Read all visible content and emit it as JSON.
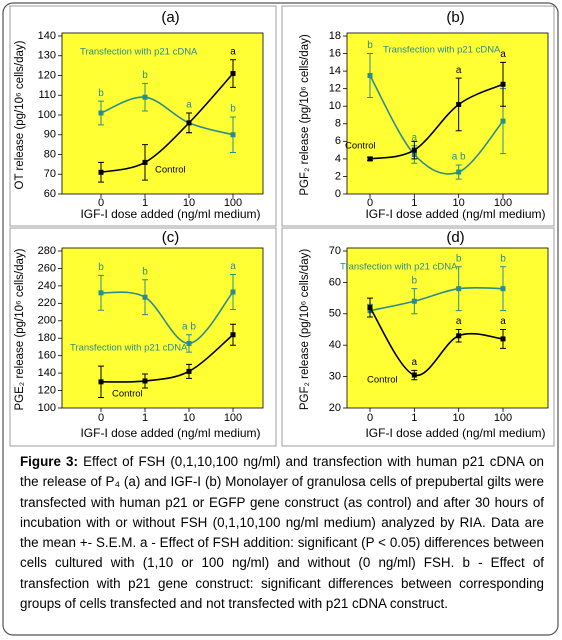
{
  "chart_data": [
    {
      "type": "line",
      "title": "(a)",
      "x_label": "IGF-I dose added (ng/ml medium)",
      "y_label": "OT release (pg/10⁶ cells/day)",
      "categories": [
        "0",
        "1",
        "10",
        "100"
      ],
      "ylim": [
        60,
        140
      ],
      "yticks": [
        60,
        70,
        80,
        90,
        100,
        110,
        120,
        130,
        140
      ],
      "series": [
        {
          "name": "Transfection with p21 cDNA",
          "color": "#2b8c8c",
          "values": [
            101,
            109,
            96,
            90
          ],
          "errors": [
            6,
            7,
            5,
            9
          ],
          "labels": [
            "b",
            "b",
            "a",
            "b"
          ]
        },
        {
          "name": "Control",
          "color": "#000000",
          "values": [
            71,
            76,
            96,
            121
          ],
          "errors": [
            5,
            9,
            5,
            7
          ],
          "labels": [
            null,
            null,
            null,
            "a"
          ]
        }
      ]
    },
    {
      "type": "line",
      "title": "(b)",
      "x_label": "IGF-I dose added (ng/ml medium)",
      "y_label": "PGF₂ release (pg/10⁶ cells/day)",
      "categories": [
        "0",
        "1",
        "10",
        "100"
      ],
      "ylim": [
        0,
        18
      ],
      "yticks": [
        0,
        2,
        4,
        6,
        8,
        10,
        12,
        14,
        16,
        18
      ],
      "series": [
        {
          "name": "Transfection with p21 cDNA",
          "color": "#2b8c8c",
          "values": [
            13.5,
            4.5,
            2.5,
            8.3
          ],
          "errors": [
            2.5,
            1,
            0.8,
            3.7
          ],
          "labels": [
            "b",
            "a",
            "a b",
            null
          ]
        },
        {
          "name": "Control",
          "color": "#000000",
          "values": [
            4,
            5,
            10.2,
            12.5
          ],
          "errors": [
            0.2,
            1,
            3,
            2.5
          ],
          "labels": [
            null,
            null,
            "a",
            "a"
          ]
        }
      ]
    },
    {
      "type": "line",
      "title": "(c)",
      "x_label": "IGF-I dose added (ng/ml medium)",
      "y_label": "PGE₂ release (pg/10⁶ cells/day)",
      "categories": [
        "0",
        "1",
        "10",
        "100"
      ],
      "ylim": [
        100,
        280
      ],
      "yticks": [
        100,
        120,
        140,
        160,
        180,
        200,
        220,
        240,
        260,
        280
      ],
      "series": [
        {
          "name": "Transfection with p21 cDNA",
          "color": "#2b8c8c",
          "values": [
            232,
            227,
            174,
            233
          ],
          "errors": [
            20,
            20,
            10,
            20
          ],
          "labels": [
            "b",
            "b",
            "a b",
            "a"
          ]
        },
        {
          "name": "Control",
          "color": "#000000",
          "values": [
            130,
            131,
            142,
            184
          ],
          "errors": [
            18,
            8,
            8,
            12
          ],
          "labels": [
            null,
            null,
            null,
            null
          ]
        }
      ]
    },
    {
      "type": "line",
      "title": "(d)",
      "x_label": "IGF-I dose added (ng/ml medium)",
      "y_label": "PGF₂ release (pg/10⁶ cells/day)",
      "categories": [
        "0",
        "1",
        "10",
        "100"
      ],
      "ylim": [
        20,
        70
      ],
      "yticks": [
        20,
        30,
        40,
        50,
        60,
        70
      ],
      "series": [
        {
          "name": "Transfection with p21 cDNA",
          "color": "#2b8c8c",
          "values": [
            51,
            54,
            58,
            58
          ],
          "errors": [
            2,
            4,
            7,
            7
          ],
          "labels": [
            null,
            "b",
            "b",
            "b"
          ]
        },
        {
          "name": "Control",
          "color": "#000000",
          "values": [
            52,
            30.5,
            43,
            42
          ],
          "errors": [
            3,
            1.5,
            2,
            3
          ],
          "labels": [
            null,
            "a",
            "a",
            "a"
          ]
        }
      ]
    }
  ],
  "caption": {
    "label": "Figure 3:",
    "text": "Effect of FSH (0,1,10,100 ng/ml) and transfection with human p21 cDNA on the release of P₄ (a) and IGF-I (b) Monolayer of granulosa cells of prepubertal gilts were transfected with human p21 or EGFP gene construct (as control) and after 30 hours of incubation with or without FSH (0,1,10,100 ng/ml medium) analyzed by RIA. Data are the mean +- S.E.M. a - Effect of FSH addition: significant (P < 0.05) differences between cells cultured with (1,10 or 100 ng/ml) and without (0 ng/ml) FSH. b - Effect of transfection with p21 gene construct: significant differences between corresponding groups of cells transfected and not transfected with p21 cDNA construct."
  }
}
